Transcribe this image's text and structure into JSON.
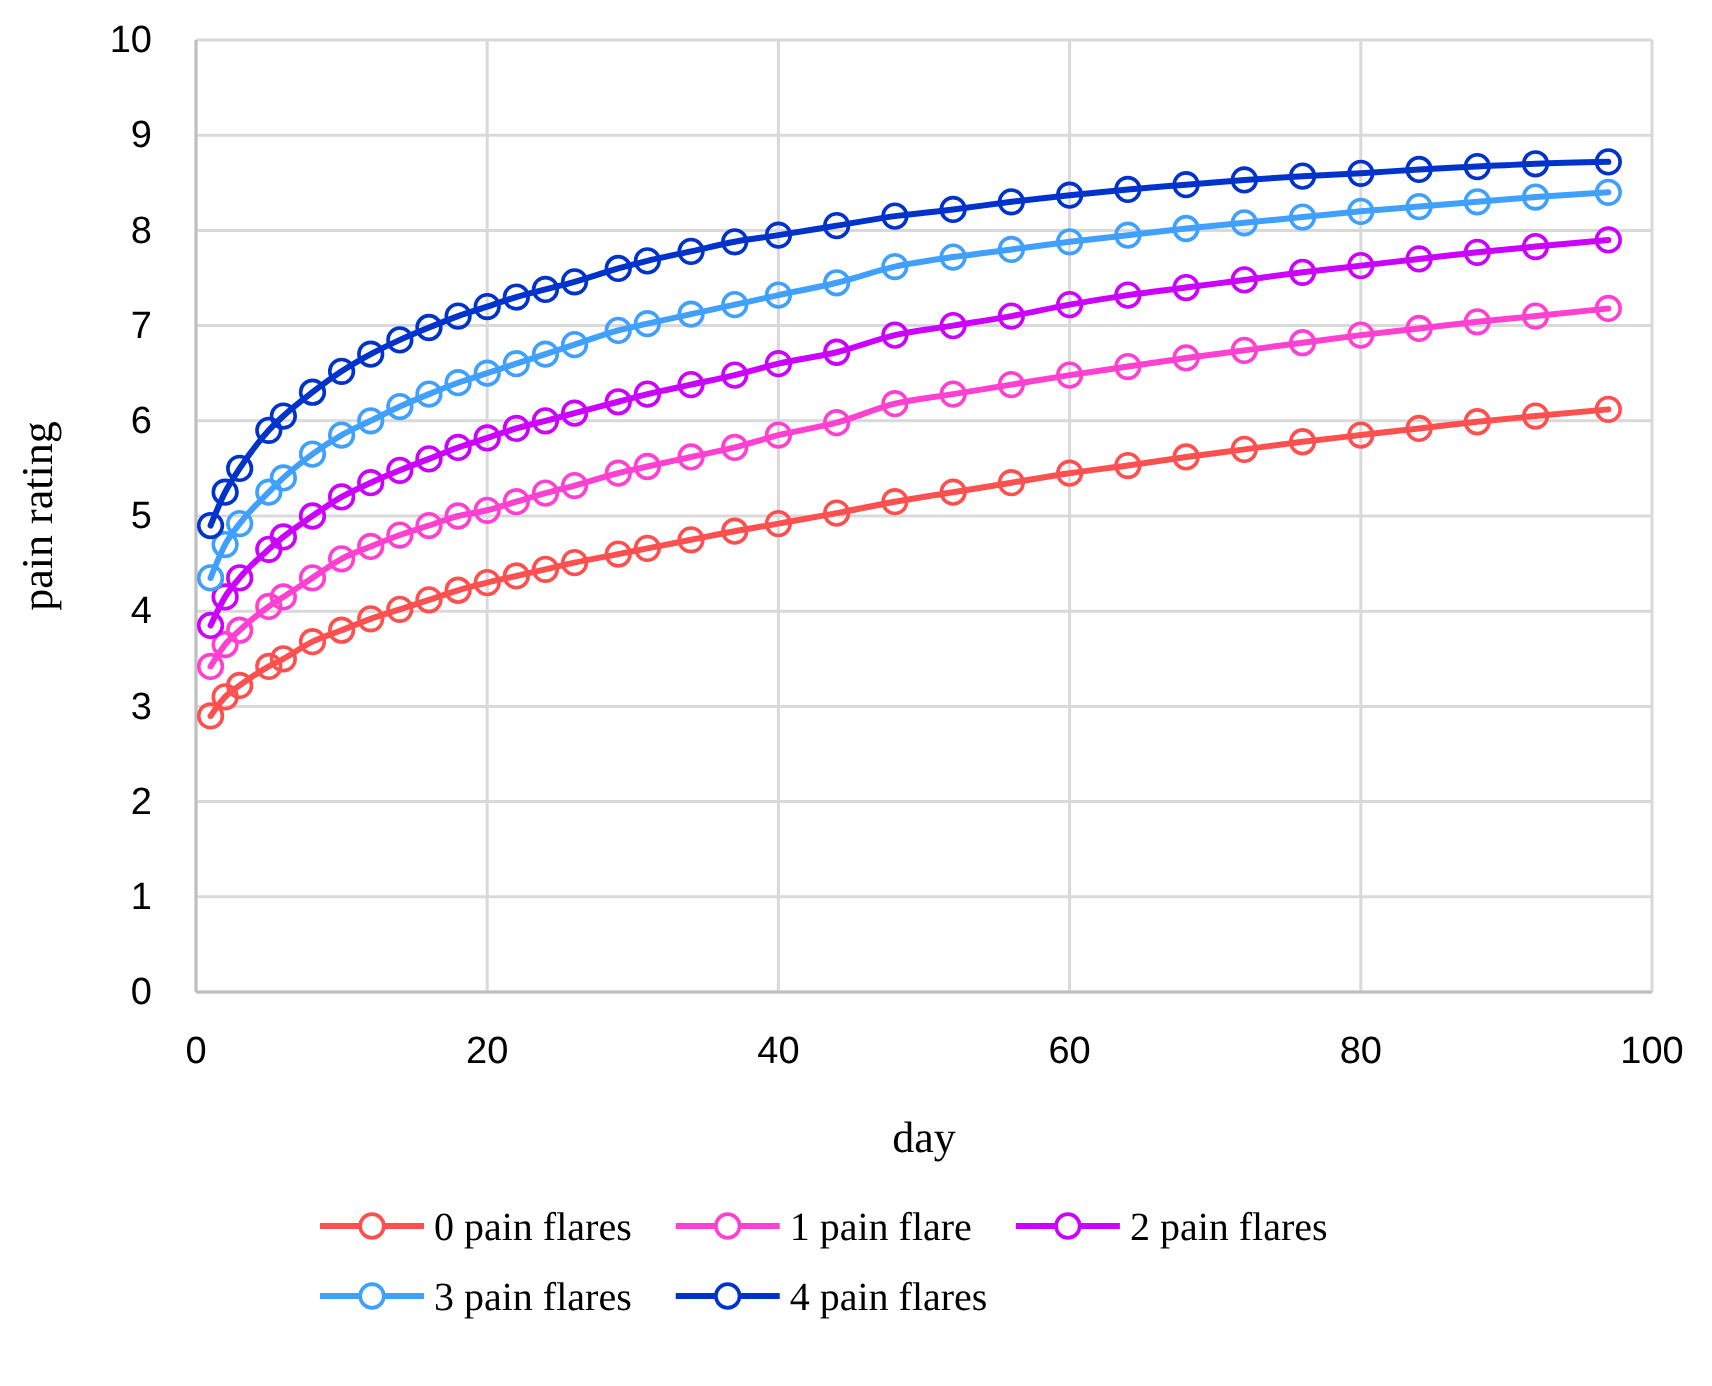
{
  "chart_data": {
    "type": "line",
    "xlabel": "day",
    "ylabel": "pain rating",
    "x": [
      1,
      2,
      3,
      5,
      6,
      8,
      10,
      12,
      14,
      16,
      18,
      20,
      22,
      24,
      26,
      29,
      31,
      34,
      37,
      40,
      44,
      48,
      52,
      56,
      60,
      64,
      68,
      72,
      76,
      80,
      84,
      88,
      92,
      97
    ],
    "xlim": [
      0,
      100
    ],
    "xticks": [
      0,
      20,
      40,
      60,
      80,
      100
    ],
    "ylim": [
      0,
      10
    ],
    "yticks": [
      0,
      1,
      2,
      3,
      4,
      5,
      6,
      7,
      8,
      9,
      10
    ],
    "grid": true,
    "legend": "bottom",
    "marker": "circle",
    "line_style": "solid",
    "series": [
      {
        "name": "0 pain flares",
        "color": "#ff5050",
        "values": [
          2.9,
          3.1,
          3.22,
          3.42,
          3.5,
          3.68,
          3.8,
          3.92,
          4.02,
          4.12,
          4.22,
          4.3,
          4.37,
          4.44,
          4.51,
          4.6,
          4.66,
          4.75,
          4.84,
          4.92,
          5.03,
          5.15,
          5.25,
          5.35,
          5.45,
          5.53,
          5.62,
          5.7,
          5.78,
          5.85,
          5.92,
          5.99,
          6.05,
          6.12
        ]
      },
      {
        "name": "1 pain flare",
        "color": "#ff40d0",
        "values": [
          3.42,
          3.65,
          3.8,
          4.05,
          4.15,
          4.35,
          4.55,
          4.68,
          4.8,
          4.9,
          5.0,
          5.06,
          5.15,
          5.24,
          5.32,
          5.45,
          5.52,
          5.62,
          5.72,
          5.85,
          5.98,
          6.18,
          6.28,
          6.38,
          6.48,
          6.57,
          6.66,
          6.74,
          6.82,
          6.9,
          6.97,
          7.04,
          7.1,
          7.18
        ]
      },
      {
        "name": "2 pain flares",
        "color": "#cc00ff",
        "values": [
          3.85,
          4.15,
          4.35,
          4.65,
          4.78,
          5.0,
          5.2,
          5.35,
          5.48,
          5.6,
          5.72,
          5.82,
          5.92,
          6.0,
          6.08,
          6.2,
          6.28,
          6.38,
          6.48,
          6.6,
          6.72,
          6.9,
          7.0,
          7.1,
          7.22,
          7.32,
          7.4,
          7.48,
          7.56,
          7.63,
          7.7,
          7.77,
          7.83,
          7.9
        ]
      },
      {
        "name": "3 pain flares",
        "color": "#3fa0ff",
        "values": [
          4.35,
          4.7,
          4.92,
          5.25,
          5.4,
          5.65,
          5.85,
          6.0,
          6.15,
          6.28,
          6.4,
          6.5,
          6.6,
          6.7,
          6.8,
          6.95,
          7.02,
          7.12,
          7.22,
          7.32,
          7.45,
          7.62,
          7.72,
          7.8,
          7.88,
          7.95,
          8.02,
          8.08,
          8.14,
          8.2,
          8.25,
          8.3,
          8.35,
          8.4
        ]
      },
      {
        "name": "4 pain flares",
        "color": "#0033cc",
        "values": [
          4.9,
          5.25,
          5.5,
          5.9,
          6.05,
          6.3,
          6.52,
          6.7,
          6.85,
          6.98,
          7.1,
          7.2,
          7.3,
          7.38,
          7.46,
          7.6,
          7.68,
          7.78,
          7.88,
          7.95,
          8.05,
          8.15,
          8.22,
          8.3,
          8.37,
          8.43,
          8.48,
          8.53,
          8.57,
          8.6,
          8.64,
          8.67,
          8.7,
          8.72
        ]
      }
    ]
  }
}
